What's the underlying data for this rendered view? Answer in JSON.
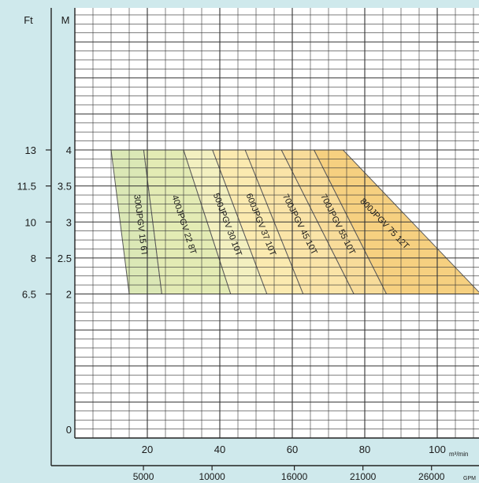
{
  "chart_data": {
    "type": "area",
    "title": "",
    "left_axis_units": [
      "Ft",
      "M"
    ],
    "ft_ticks": [
      {
        "label": "13",
        "m": 4
      },
      {
        "label": "11.5",
        "m": 3.5
      },
      {
        "label": "10",
        "m": 3
      },
      {
        "label": "8",
        "m": 2.5
      },
      {
        "label": "6.5",
        "m": 2
      }
    ],
    "m_ticks": [
      {
        "label": "4",
        "m": 4
      },
      {
        "label": "3.5",
        "m": 3.5
      },
      {
        "label": "3",
        "m": 3
      },
      {
        "label": "2.5",
        "m": 2.5
      },
      {
        "label": "2",
        "m": 2
      },
      {
        "label": "0",
        "m": 0
      }
    ],
    "x_ticks": [
      {
        "label": "20",
        "v": 20
      },
      {
        "label": "40",
        "v": 40
      },
      {
        "label": "60",
        "v": 60
      },
      {
        "label": "80",
        "v": 80
      },
      {
        "label": "100",
        "v": 100
      }
    ],
    "x_unit": "m³/min",
    "gpm_ticks": [
      {
        "label": "5000",
        "v": 5000
      },
      {
        "label": "10000",
        "v": 10000
      },
      {
        "label": "16000",
        "v": 16000
      },
      {
        "label": "21000",
        "v": 21000
      },
      {
        "label": "26000",
        "v": 26000
      }
    ],
    "gpm_unit": "GPM",
    "ylim_m": [
      0,
      4.35
    ],
    "xlim_m3min": [
      0,
      110
    ],
    "series": [
      {
        "name": "300JPGV 15 6T",
        "color": "#dbe8b6",
        "top": [
          [
            10,
            4
          ],
          [
            19,
            4
          ]
        ],
        "bottom": [
          [
            15,
            2
          ],
          [
            24,
            2
          ]
        ]
      },
      {
        "name": "400JPGV 22 8T",
        "color": "#e3ebb4",
        "top": [
          [
            19,
            4
          ],
          [
            30,
            4
          ]
        ],
        "bottom": [
          [
            24,
            2
          ],
          [
            43,
            2
          ]
        ]
      },
      {
        "name": "500JPGV 30 10T",
        "color": "#f3f0c0",
        "top": [
          [
            30,
            4
          ],
          [
            38,
            4
          ]
        ],
        "bottom": [
          [
            43,
            2
          ],
          [
            53,
            2
          ]
        ]
      },
      {
        "name": "600JPGV 37 10T",
        "color": "#fbeab0",
        "top": [
          [
            38,
            4
          ],
          [
            47,
            4
          ]
        ],
        "bottom": [
          [
            53,
            2
          ],
          [
            63,
            2
          ]
        ]
      },
      {
        "name": "700JPGV 45 10T",
        "color": "#fae4a8",
        "top": [
          [
            47,
            4
          ],
          [
            57,
            4
          ]
        ],
        "bottom": [
          [
            63,
            2
          ],
          [
            77,
            2
          ]
        ]
      },
      {
        "name": "700JPGV 55 10T",
        "color": "#f8dc9a",
        "top": [
          [
            57,
            4
          ],
          [
            66,
            4
          ]
        ],
        "bottom": [
          [
            77,
            2
          ],
          [
            86,
            2
          ]
        ]
      },
      {
        "name": "800JPGV 75 12T",
        "color": "#f6d080",
        "top": [
          [
            66,
            4
          ],
          [
            74,
            4
          ]
        ],
        "bottom": [
          [
            86,
            2
          ],
          [
            112,
            2
          ]
        ]
      }
    ],
    "grid": true
  }
}
